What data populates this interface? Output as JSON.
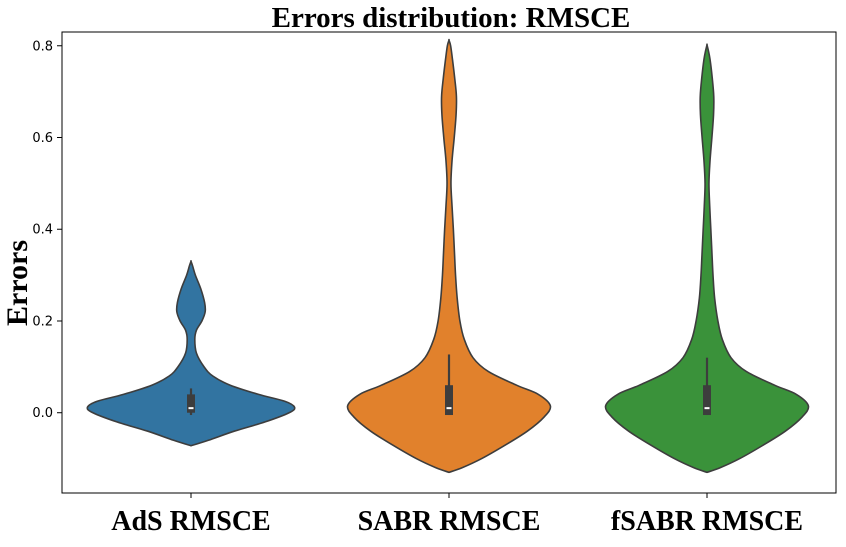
{
  "chart_data": {
    "type": "violin",
    "title": "Errors distribution: RMSCE",
    "xlabel": "",
    "ylabel": "Errors",
    "ylim": [
      -0.175,
      0.83
    ],
    "yticks": [
      0.0,
      0.2,
      0.4,
      0.6,
      0.8
    ],
    "ytick_labels": [
      "0.0",
      "0.2",
      "0.4",
      "0.6",
      "0.8"
    ],
    "categories": [
      "AdS RMSCE",
      "SABR RMSCE",
      "fSABR RMSCE"
    ],
    "grid": false,
    "series": [
      {
        "color": "#3274a1",
        "quartiles": [
          0.0,
          0.01,
          0.04
        ],
        "whiskers": [
          -0.005,
          0.053
        ],
        "median": 0.01,
        "density": [
          {
            "y": -0.072,
            "w": 0.0
          },
          {
            "y": -0.06,
            "w": 0.16
          },
          {
            "y": -0.04,
            "w": 0.4
          },
          {
            "y": -0.02,
            "w": 0.68
          },
          {
            "y": 0.0,
            "w": 0.9
          },
          {
            "y": 0.012,
            "w": 0.95
          },
          {
            "y": 0.025,
            "w": 0.86
          },
          {
            "y": 0.04,
            "w": 0.62
          },
          {
            "y": 0.06,
            "w": 0.36
          },
          {
            "y": 0.08,
            "w": 0.2
          },
          {
            "y": 0.1,
            "w": 0.12
          },
          {
            "y": 0.13,
            "w": 0.05
          },
          {
            "y": 0.16,
            "w": 0.035
          },
          {
            "y": 0.18,
            "w": 0.05
          },
          {
            "y": 0.2,
            "w": 0.1
          },
          {
            "y": 0.22,
            "w": 0.13
          },
          {
            "y": 0.24,
            "w": 0.125
          },
          {
            "y": 0.27,
            "w": 0.09
          },
          {
            "y": 0.3,
            "w": 0.04
          },
          {
            "y": 0.32,
            "w": 0.015
          },
          {
            "y": 0.33,
            "w": 0.0
          }
        ]
      },
      {
        "color": "#e1812c",
        "quartiles": [
          -0.005,
          0.01,
          0.06
        ],
        "whiskers": [
          -0.005,
          0.127
        ],
        "median": 0.01,
        "density": [
          {
            "y": -0.13,
            "w": 0.0
          },
          {
            "y": -0.12,
            "w": 0.12
          },
          {
            "y": -0.1,
            "w": 0.3
          },
          {
            "y": -0.07,
            "w": 0.52
          },
          {
            "y": -0.04,
            "w": 0.72
          },
          {
            "y": -0.01,
            "w": 0.87
          },
          {
            "y": 0.015,
            "w": 0.93
          },
          {
            "y": 0.04,
            "w": 0.82
          },
          {
            "y": 0.06,
            "w": 0.62
          },
          {
            "y": 0.09,
            "w": 0.36
          },
          {
            "y": 0.12,
            "w": 0.22
          },
          {
            "y": 0.16,
            "w": 0.14
          },
          {
            "y": 0.2,
            "w": 0.1
          },
          {
            "y": 0.25,
            "w": 0.075
          },
          {
            "y": 0.3,
            "w": 0.06
          },
          {
            "y": 0.35,
            "w": 0.05
          },
          {
            "y": 0.4,
            "w": 0.04
          },
          {
            "y": 0.45,
            "w": 0.028
          },
          {
            "y": 0.5,
            "w": 0.018
          },
          {
            "y": 0.55,
            "w": 0.028
          },
          {
            "y": 0.6,
            "w": 0.048
          },
          {
            "y": 0.65,
            "w": 0.065
          },
          {
            "y": 0.69,
            "w": 0.068
          },
          {
            "y": 0.73,
            "w": 0.052
          },
          {
            "y": 0.77,
            "w": 0.032
          },
          {
            "y": 0.8,
            "w": 0.015
          },
          {
            "y": 0.812,
            "w": 0.0
          }
        ]
      },
      {
        "color": "#3a923a",
        "quartiles": [
          -0.005,
          0.01,
          0.06
        ],
        "whiskers": [
          -0.005,
          0.12
        ],
        "median": 0.01,
        "density": [
          {
            "y": -0.13,
            "w": 0.0
          },
          {
            "y": -0.12,
            "w": 0.12
          },
          {
            "y": -0.1,
            "w": 0.3
          },
          {
            "y": -0.07,
            "w": 0.52
          },
          {
            "y": -0.04,
            "w": 0.72
          },
          {
            "y": -0.01,
            "w": 0.87
          },
          {
            "y": 0.015,
            "w": 0.93
          },
          {
            "y": 0.04,
            "w": 0.82
          },
          {
            "y": 0.06,
            "w": 0.62
          },
          {
            "y": 0.09,
            "w": 0.36
          },
          {
            "y": 0.12,
            "w": 0.22
          },
          {
            "y": 0.16,
            "w": 0.14
          },
          {
            "y": 0.2,
            "w": 0.1
          },
          {
            "y": 0.25,
            "w": 0.07
          },
          {
            "y": 0.3,
            "w": 0.055
          },
          {
            "y": 0.35,
            "w": 0.045
          },
          {
            "y": 0.4,
            "w": 0.035
          },
          {
            "y": 0.45,
            "w": 0.025
          },
          {
            "y": 0.5,
            "w": 0.018
          },
          {
            "y": 0.55,
            "w": 0.028
          },
          {
            "y": 0.6,
            "w": 0.045
          },
          {
            "y": 0.65,
            "w": 0.06
          },
          {
            "y": 0.69,
            "w": 0.062
          },
          {
            "y": 0.73,
            "w": 0.048
          },
          {
            "y": 0.77,
            "w": 0.028
          },
          {
            "y": 0.79,
            "w": 0.012
          },
          {
            "y": 0.802,
            "w": 0.0
          }
        ]
      }
    ]
  }
}
